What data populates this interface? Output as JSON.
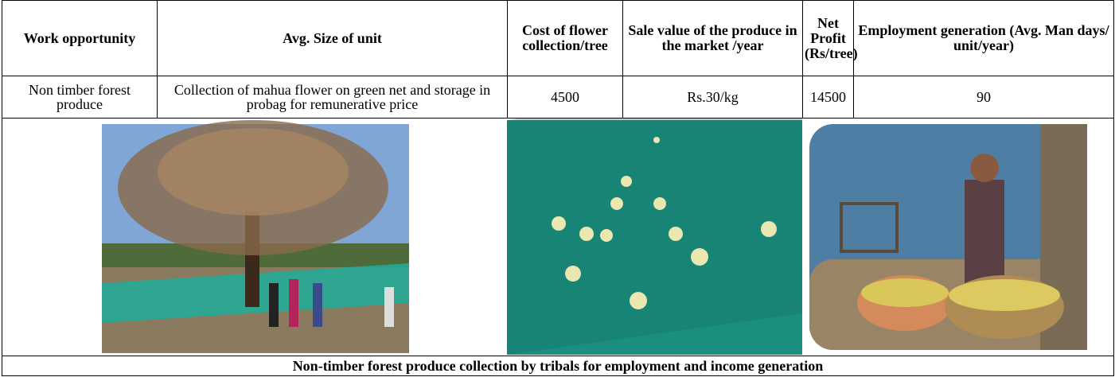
{
  "table": {
    "headers": [
      "Work opportunity",
      "Avg. Size of unit",
      "Cost of flower collection/tree",
      "Sale value of the produce in the market /year",
      "Net Profit (Rs/tree)",
      "Employment generation (Avg. Man days/ unit/year)"
    ],
    "rows": [
      [
        "Non timber forest produce",
        "Collection of mahua flower on green net and storage in probag for remunerative price",
        4500,
        "Rs.30/kg",
        14500,
        90
      ]
    ]
  },
  "caption": "Non-timber forest produce collection by tribals for employment and income generation"
}
